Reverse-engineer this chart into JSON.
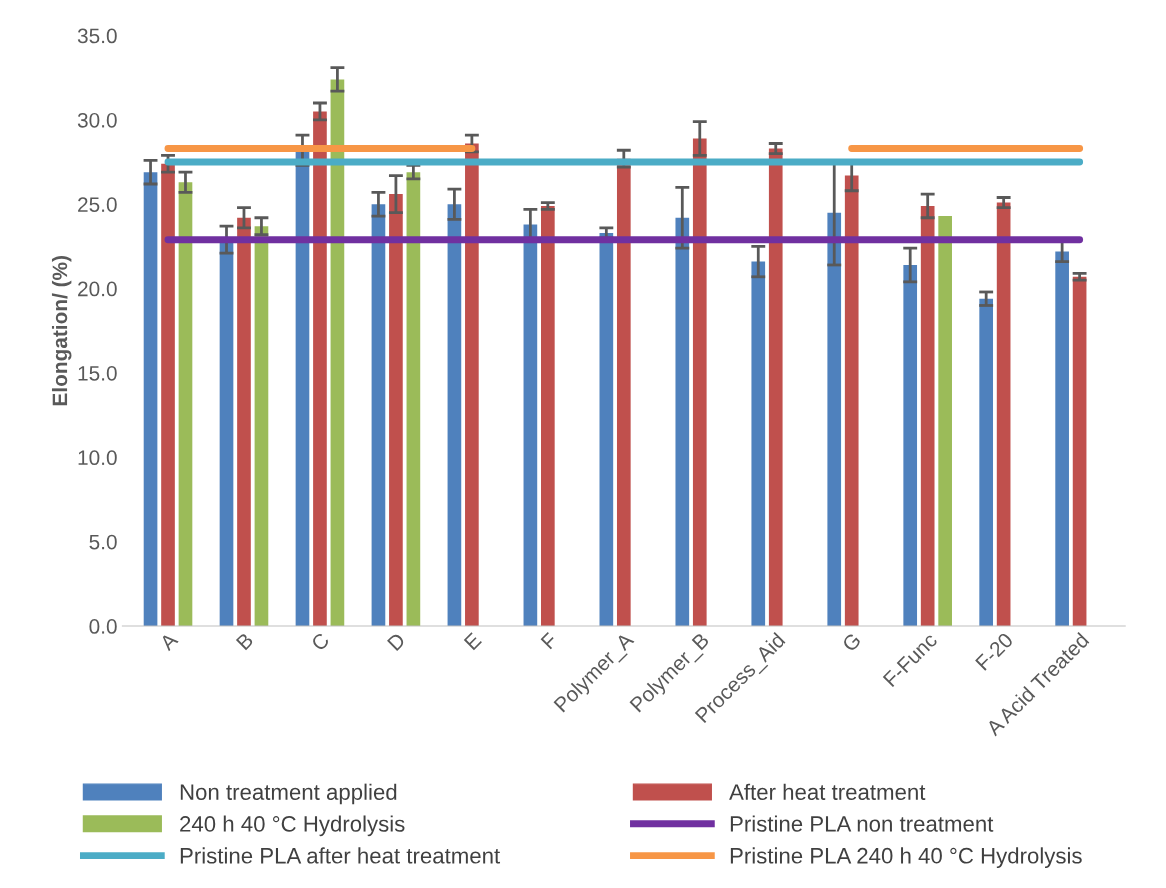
{
  "chart_data": {
    "type": "bar",
    "ylabel": "Elongation/ (%)",
    "categories": [
      "A",
      "B",
      "C",
      "D",
      "E",
      "F",
      "Polymer_A",
      "Polymer_B",
      "Process_Aid",
      "G",
      "F-Func",
      "F-20",
      "A Acid Treated"
    ],
    "series": [
      {
        "name": "Non treatment applied",
        "color": "#4f81bd",
        "values": [
          26.9,
          22.9,
          28.2,
          25.0,
          25.0,
          23.8,
          23.3,
          24.2,
          21.6,
          24.5,
          21.4,
          19.4,
          22.2
        ],
        "errors": [
          0.7,
          0.8,
          0.9,
          0.7,
          0.9,
          0.9,
          0.3,
          1.8,
          0.9,
          3.1,
          1.0,
          0.4,
          0.6
        ]
      },
      {
        "name": "After heat treatment",
        "color": "#c0504d",
        "values": [
          27.4,
          24.2,
          30.5,
          25.6,
          28.6,
          24.9,
          27.7,
          28.9,
          28.3,
          26.7,
          24.9,
          25.1,
          20.7
        ],
        "errors": [
          0.5,
          0.6,
          0.5,
          1.1,
          0.5,
          0.2,
          0.5,
          1.0,
          0.3,
          0.9,
          0.7,
          0.3,
          0.2
        ]
      },
      {
        "name": "240 h 40 °C Hydrolysis",
        "color": "#9bbb59",
        "values": [
          26.3,
          23.7,
          32.4,
          26.9,
          null,
          null,
          null,
          null,
          null,
          null,
          24.3,
          null,
          null
        ],
        "errors": [
          0.6,
          0.5,
          0.7,
          0.4,
          null,
          null,
          null,
          null,
          null,
          null,
          null,
          null,
          null
        ]
      },
      {
        "name": "Pristine PLA non treatment",
        "type": "line",
        "color": "#7030a0",
        "values": [
          22.9,
          22.9,
          22.9,
          22.9,
          22.9,
          22.9,
          22.9,
          22.9,
          22.9,
          22.9,
          22.9,
          22.9,
          22.9
        ]
      },
      {
        "name": "Pristine PLA after heat treatment",
        "type": "line",
        "color": "#4bacc6",
        "values": [
          27.5,
          27.5,
          27.5,
          27.5,
          27.5,
          27.5,
          27.5,
          27.5,
          27.5,
          27.5,
          27.5,
          27.5,
          27.5
        ]
      },
      {
        "name": "Pristine PLA 240 h 40 °C Hydrolysis",
        "type": "line",
        "color": "#f79646",
        "values": [
          28.3,
          28.3,
          28.3,
          28.3,
          28.3,
          null,
          null,
          null,
          null,
          28.3,
          28.3,
          28.3,
          28.3
        ]
      }
    ],
    "ylim": [
      0,
      35
    ],
    "yticks": [
      {
        "value": 0,
        "label": "0.0"
      },
      {
        "value": 5,
        "label": "5.0"
      },
      {
        "value": 10,
        "label": "10.0"
      },
      {
        "value": 15,
        "label": "15.0"
      },
      {
        "value": 20,
        "label": "20.0"
      },
      {
        "value": 25,
        "label": "25.0"
      },
      {
        "value": 30,
        "label": "30.0"
      },
      {
        "value": 35,
        "label": "35.0"
      }
    ],
    "grid": false,
    "legend": "bottom"
  }
}
